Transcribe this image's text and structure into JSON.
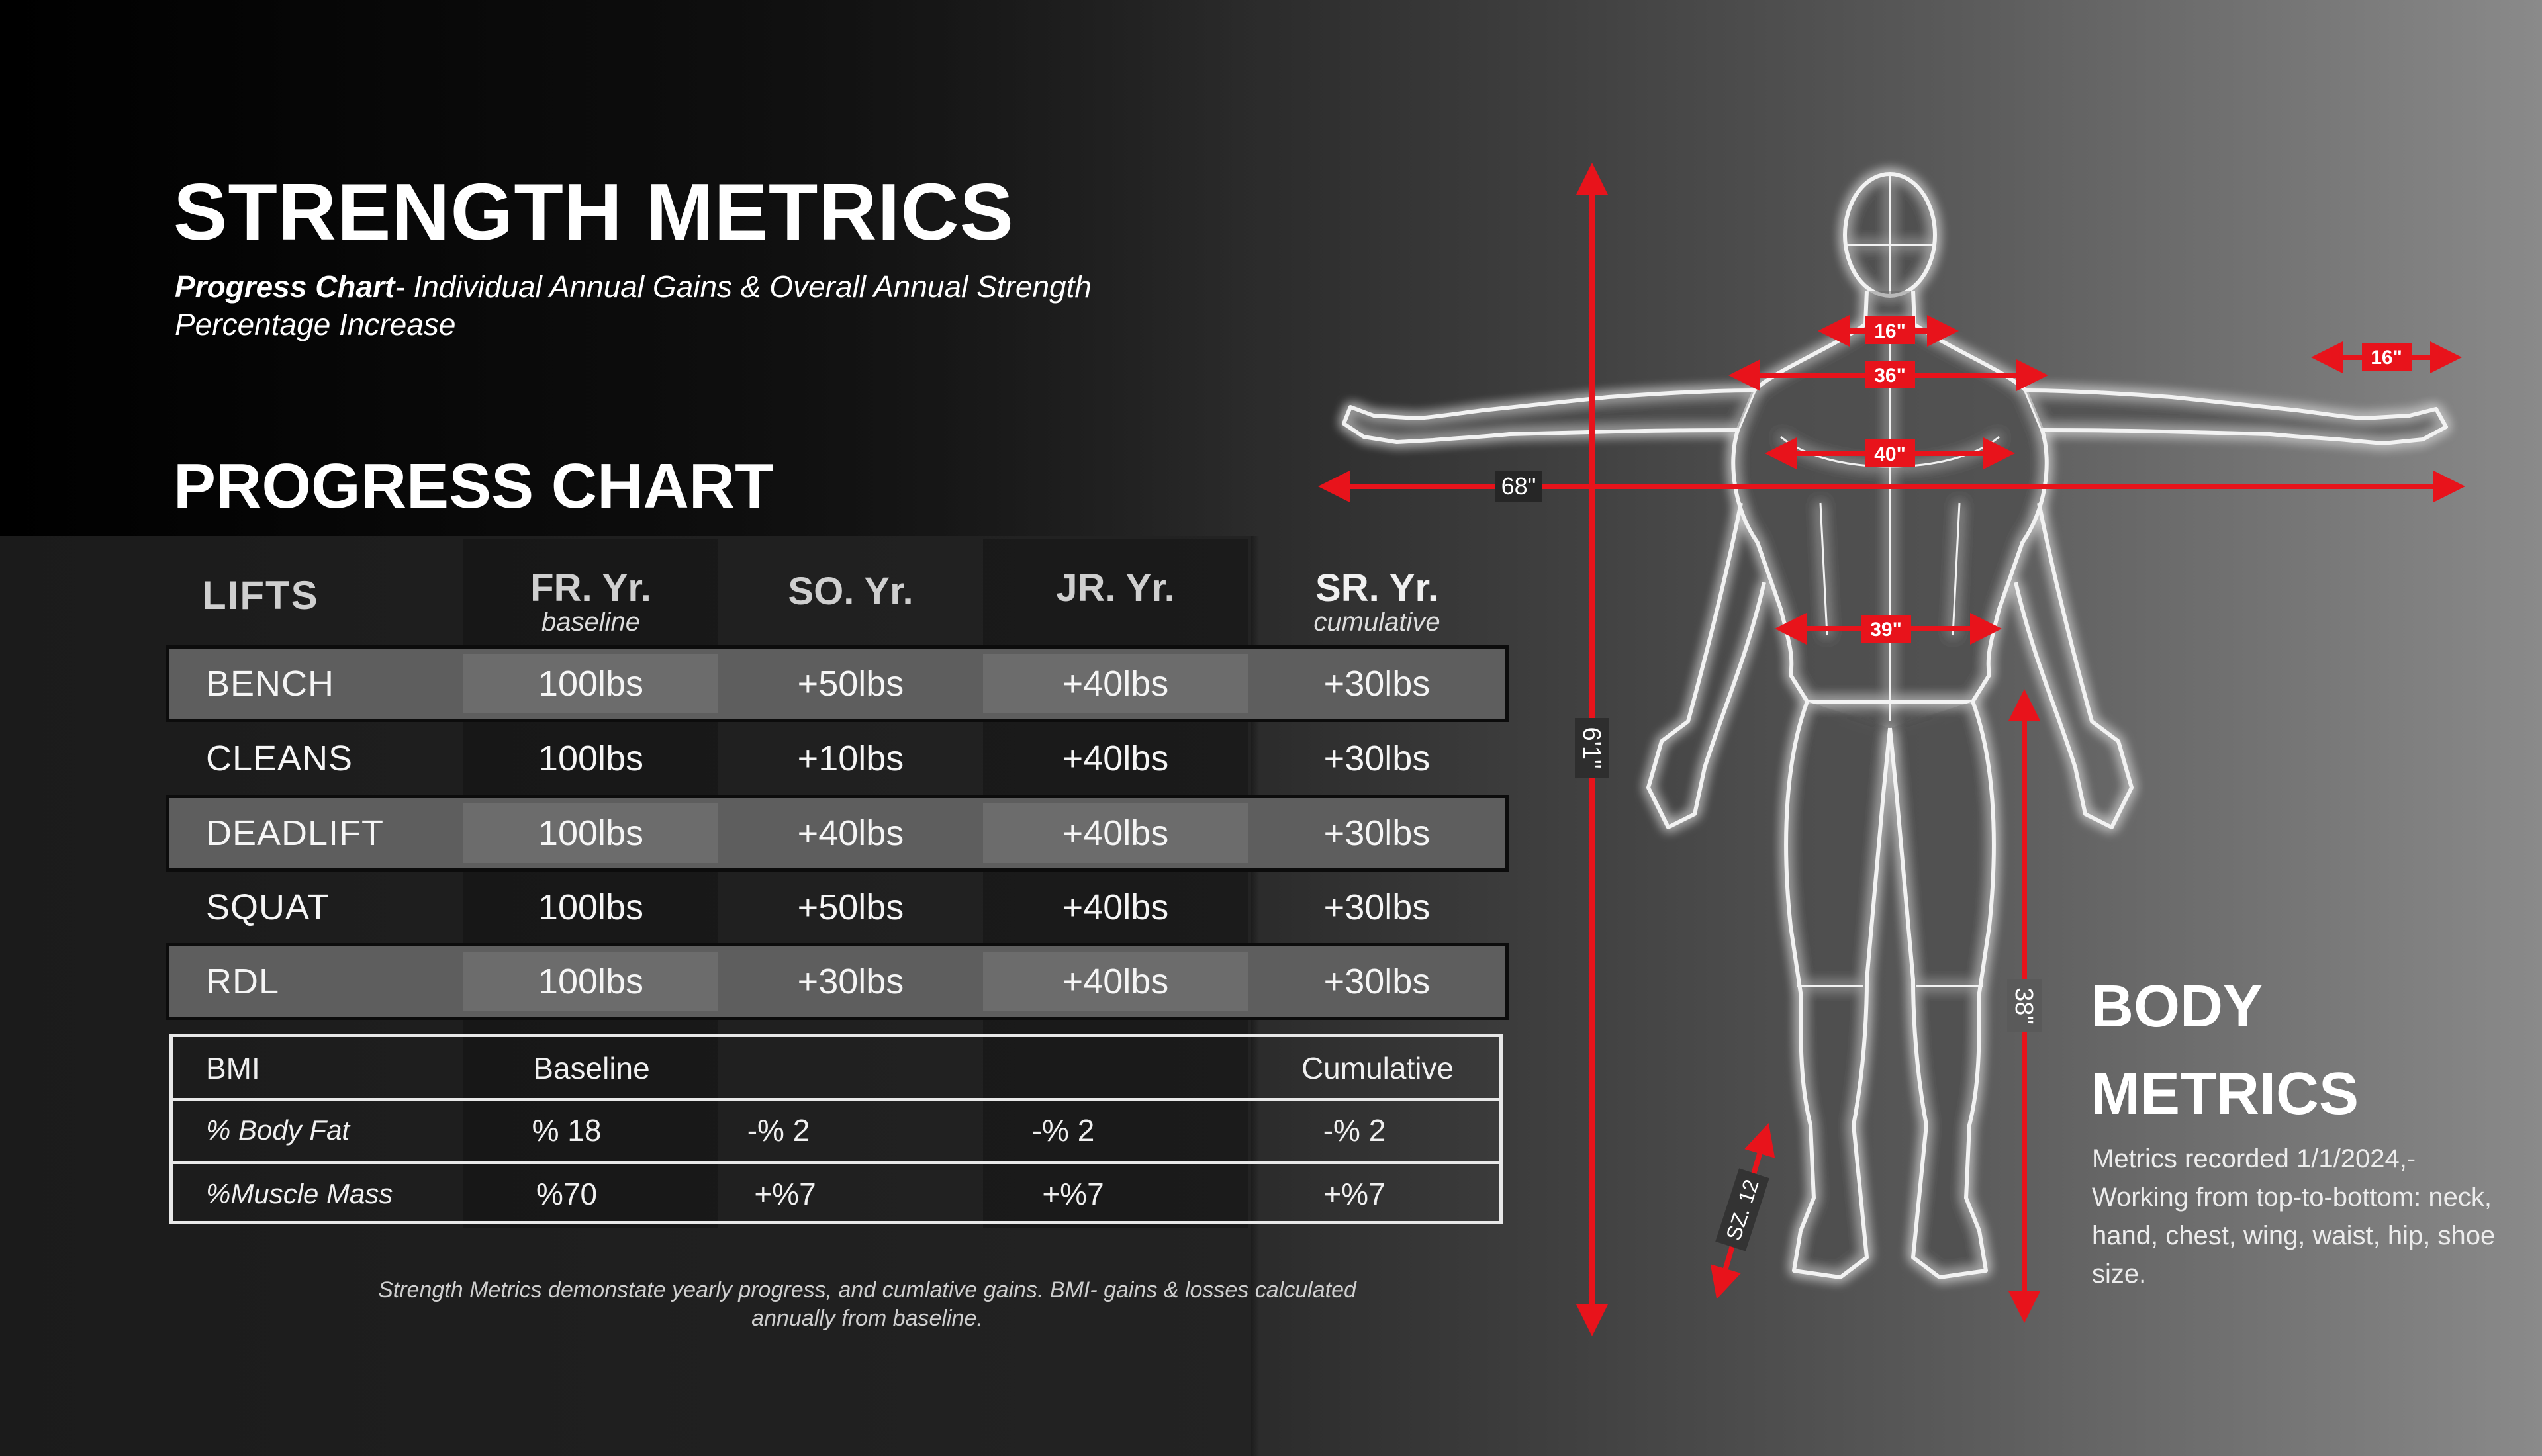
{
  "header": {
    "title": "STRENGTH METRICS",
    "subtitle_bold": "Progress Chart",
    "subtitle_rest": "- Individual Annual Gains & Overall Annual Strength Percentage Increase"
  },
  "progress_chart": {
    "title": "PROGRESS CHART",
    "columns": [
      {
        "label": "LIFTS",
        "sub": ""
      },
      {
        "label": "FR. Yr.",
        "sub": "baseline"
      },
      {
        "label": "SO. Yr.",
        "sub": ""
      },
      {
        "label": "JR. Yr.",
        "sub": ""
      },
      {
        "label": "SR. Yr.",
        "sub": "cumulative"
      }
    ],
    "rows": [
      {
        "lift": "BENCH",
        "values": [
          "100lbs",
          "+50lbs",
          "+40lbs",
          "+30lbs"
        ]
      },
      {
        "lift": "CLEANS",
        "values": [
          "100lbs",
          "+10lbs",
          "+40lbs",
          "+30lbs"
        ]
      },
      {
        "lift": "DEADLIFT",
        "values": [
          "100lbs",
          "+40lbs",
          "+40lbs",
          "+30lbs"
        ]
      },
      {
        "lift": "SQUAT",
        "values": [
          "100lbs",
          "+50lbs",
          "+40lbs",
          "+30lbs"
        ]
      },
      {
        "lift": "RDL",
        "values": [
          "100lbs",
          "+30lbs",
          "+40lbs",
          "+30lbs"
        ]
      }
    ],
    "bmi": [
      {
        "label": "BMI",
        "values": [
          "Baseline",
          "",
          "",
          "Cumulative"
        ]
      },
      {
        "label": "% Body Fat",
        "values": [
          "% 18",
          "-% 2",
          "-% 2",
          "-% 2"
        ]
      },
      {
        "label": "%Muscle Mass",
        "values": [
          "%70",
          "+%7",
          "+%7",
          "+%7"
        ]
      }
    ],
    "footnote": "Strength Metrics demonstate yearly progress, and cumlative gains. BMI- gains & losses calculated annually from baseline."
  },
  "body_metrics": {
    "title_line1": "BODY",
    "title_line2": "METRICS",
    "description": "Metrics recorded 1/1/2024,- Working from top-to-bottom: neck, hand,  chest, wing, waist, hip, shoe size.",
    "measurements": {
      "neck": "16\"",
      "chest": "36\"",
      "waist_upper": "40\"",
      "hip": "39\"",
      "hand": "16\"",
      "wingspan": "68\"",
      "height": "6'1\"",
      "inseam": "38\"",
      "shoe": "SZ. 12"
    },
    "accent_color": "#e8131b"
  }
}
